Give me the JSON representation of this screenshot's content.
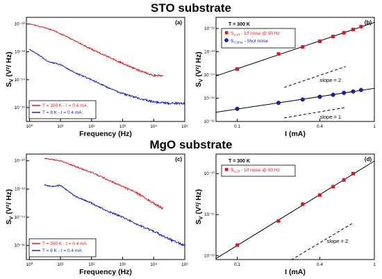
{
  "titles": {
    "top": "STO substrate",
    "bottom": "MgO substrate"
  },
  "chart_data": [
    {
      "id": "a",
      "panel_label": "(a)",
      "type": "line",
      "section": "STO substrate",
      "xlabel": "Frequency (Hz)",
      "ylabel": "S",
      "ylabel_sub": "V",
      "ylabel_rest": " (V²/ Hz)",
      "xscale": "log",
      "yscale": "log",
      "xlim": [
        0.8,
        100000
      ],
      "ylim": [
        1e-17,
        3e-10
      ],
      "xticks": [
        1,
        10,
        100,
        1000,
        10000,
        100000
      ],
      "xtick_labels": [
        "10⁰",
        "10¹",
        "10²",
        "10³",
        "10⁴",
        "10⁵"
      ],
      "yticks": [
        1e-16,
        1e-14,
        1e-12,
        1e-10
      ],
      "ytick_labels": [
        "10⁻¹⁶",
        "10⁻¹⁴",
        "10⁻¹²",
        "10⁻¹⁰"
      ],
      "legend_position": "bottom-left",
      "series": [
        {
          "name": "T = 300 K  -  I = 0.4 mA",
          "color": "#e8141c",
          "x": [
            1,
            2,
            5,
            10,
            30,
            100,
            300,
            1000,
            3000,
            10000,
            20000
          ],
          "y": [
            1e-10,
            7e-11,
            4e-11,
            2e-11,
            6e-12,
            1.5e-12,
            5e-13,
            1.5e-13,
            5e-14,
            2e-14,
            2e-14
          ]
        },
        {
          "name": "T = 8 K  -  I = 0.4 mA",
          "color": "#1a1ad2",
          "x": [
            1,
            2,
            4,
            10,
            30,
            100,
            300,
            1000,
            3000,
            10000,
            30000,
            100000
          ],
          "y": [
            1.5e-12,
            6e-13,
            2e-13,
            1.2e-13,
            3e-14,
            1e-14,
            3e-15,
            1e-15,
            5e-16,
            2.5e-16,
            2e-16,
            2e-16
          ]
        }
      ]
    },
    {
      "id": "b",
      "panel_label": "(b)",
      "type": "scatter",
      "section": "STO substrate",
      "xlabel": "I (mA)",
      "ylabel": "S",
      "ylabel_sub": "V",
      "ylabel_rest": " (V²/ Hz)",
      "annotation": "T = 300 K",
      "xscale": "log",
      "yscale": "log",
      "xlim": [
        0.07,
        1
      ],
      "ylim": [
        1e-16,
        3e-12
      ],
      "xticks": [
        0.1,
        0.4,
        1
      ],
      "xtick_labels": [
        "0.1",
        "0.4",
        "1"
      ],
      "yticks": [
        1e-16,
        1e-15,
        1e-14,
        1e-13,
        1e-12
      ],
      "ytick_labels": [
        "10⁻¹⁶",
        "10⁻¹⁵",
        "10⁻¹⁴",
        "10⁻¹³",
        "10⁻¹²"
      ],
      "legend_position": "top-left",
      "series": [
        {
          "name": "S",
          "name_sub": "V,1/f",
          "name_rest": " - 1/f noise @ 90 Hz",
          "color": "#e8141c",
          "marker": "square",
          "x": [
            0.1,
            0.2,
            0.3,
            0.4,
            0.5,
            0.6,
            0.7,
            0.8
          ],
          "y": [
            1.8e-14,
            8e-14,
            1.6e-13,
            2.8e-13,
            4.5e-13,
            6.5e-13,
            9e-13,
            1.2e-12
          ]
        },
        {
          "name": "S",
          "name_sub": "V,Shot",
          "name_rest": " - Shot noise",
          "color": "#1a1ad2",
          "marker": "circle",
          "x": [
            0.1,
            0.2,
            0.3,
            0.4,
            0.5,
            0.6,
            0.7,
            0.8
          ],
          "y": [
            3.5e-16,
            6.3e-16,
            8.8e-16,
            1.15e-15,
            1.4e-15,
            1.7e-15,
            1.95e-15,
            2.25e-15
          ]
        }
      ],
      "annotations": [
        {
          "text": "slope = 2",
          "x": 0.4,
          "y": 1.3e-14
        },
        {
          "text": "slope = 1",
          "x": 0.4,
          "y": 3.5e-16
        }
      ]
    },
    {
      "id": "c",
      "panel_label": "(c)",
      "type": "line",
      "section": "MgO substrate",
      "xlabel": "Frequency (Hz)",
      "ylabel": "S",
      "ylabel_sub": "V",
      "ylabel_rest": " (V²/ Hz)",
      "xscale": "log",
      "yscale": "log",
      "xlim": [
        0.8,
        100000
      ],
      "ylim": [
        1e-17,
        3e-10
      ],
      "xticks": [
        1,
        10,
        100,
        1000,
        10000,
        100000
      ],
      "xtick_labels": [
        "10⁰",
        "10¹",
        "10²",
        "10³",
        "10⁴",
        "10⁵"
      ],
      "yticks": [
        1e-16,
        1e-14,
        1e-12,
        1e-10
      ],
      "ytick_labels": [
        "10⁻¹⁶",
        "10⁻¹⁴",
        "10⁻¹²",
        "10⁻¹⁰"
      ],
      "legend_position": "bottom-left",
      "series": [
        {
          "name": "T = 300 K  -  I = 0.4 mA",
          "color": "#e8141c",
          "x": [
            3,
            10,
            30,
            100,
            300,
            1000,
            3000,
            10000,
            20000
          ],
          "y": [
            1.5e-10,
            1e-10,
            4e-11,
            1.5e-11,
            5e-12,
            1.5e-12,
            5e-13,
            1e-13,
            4e-14
          ]
        },
        {
          "name": "T = 8 K  -  I = 0.4 mA",
          "color": "#1a1ad2",
          "x": [
            3,
            5,
            10,
            30,
            100,
            300,
            1000,
            3000,
            10000,
            30000,
            100000
          ],
          "y": [
            2e-12,
            1.5e-12,
            1.8e-12,
            3e-13,
            1e-13,
            3e-14,
            1e-14,
            3e-15,
            1e-15,
            3e-16,
            1e-16
          ]
        }
      ]
    },
    {
      "id": "d",
      "panel_label": "(d)",
      "type": "scatter",
      "section": "MgO substrate",
      "xlabel": "I (mA)",
      "ylabel": "S",
      "ylabel_sub": "V",
      "ylabel_rest": " (V²/ Hz)",
      "annotation": "T = 300 K",
      "xscale": "log",
      "yscale": "log",
      "xlim": [
        0.07,
        1
      ],
      "ylim": [
        8e-13,
        3e-10
      ],
      "xticks": [
        0.1,
        0.4,
        1
      ],
      "xtick_labels": [
        "0.1",
        "0.4",
        "1"
      ],
      "yticks": [
        1e-12,
        1e-11,
        1e-10
      ],
      "ytick_labels": [
        "10⁻¹²",
        "10⁻¹¹",
        "10⁻¹⁰"
      ],
      "legend_position": "top-left",
      "series": [
        {
          "name": "S",
          "name_sub": "V,1/f",
          "name_rest": " - 1/f noise @ 90 Hz",
          "color": "#e8141c",
          "marker": "square",
          "x": [
            0.1,
            0.2,
            0.3,
            0.4,
            0.5,
            0.6,
            0.7
          ],
          "y": [
            1.8e-12,
            7e-12,
            1.8e-11,
            3e-11,
            4.8e-11,
            7e-11,
            1e-10
          ]
        }
      ],
      "annotations": [
        {
          "text": "slope = 2",
          "x": 0.45,
          "y": 3.5e-12
        }
      ]
    }
  ]
}
